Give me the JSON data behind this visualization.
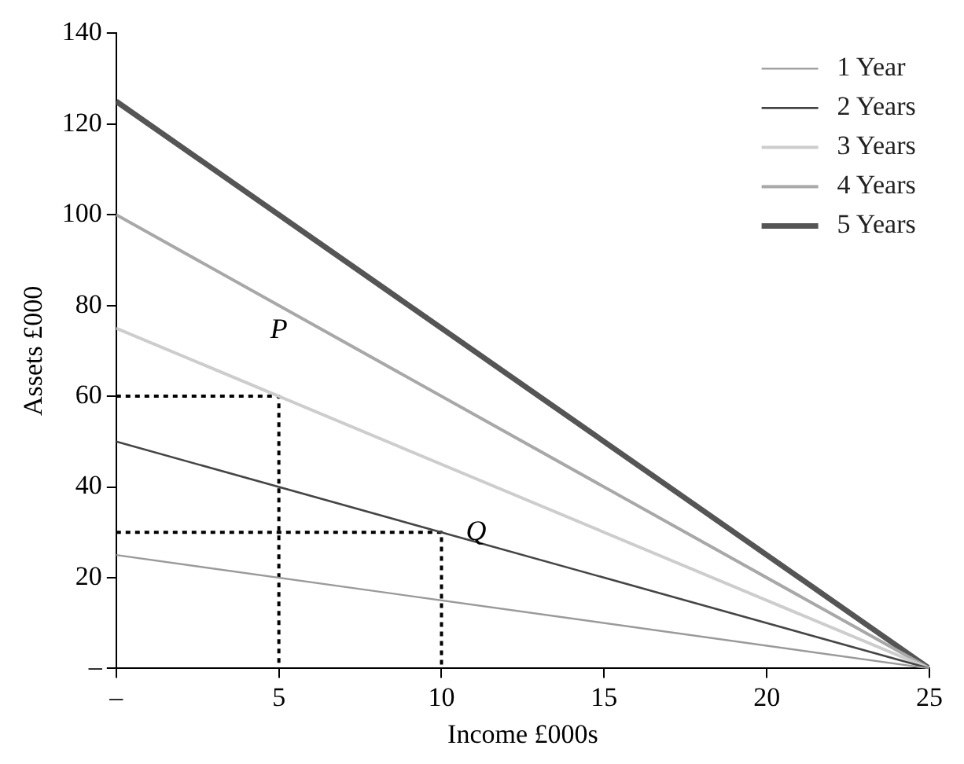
{
  "chart_data": {
    "type": "line",
    "xlabel": "Income £000s",
    "ylabel": "Assets £000",
    "x": [
      0,
      25
    ],
    "series": [
      {
        "name": "1 Year",
        "color": "#9a9a9a",
        "values": [
          25,
          0
        ]
      },
      {
        "name": "2 Years",
        "color": "#454545",
        "values": [
          50,
          0
        ]
      },
      {
        "name": "3 Years",
        "color": "#cdcdcd",
        "values": [
          75,
          0
        ]
      },
      {
        "name": "4 Years",
        "color": "#a8a8a8",
        "values": [
          100,
          0
        ]
      },
      {
        "name": "5 Years",
        "color": "#555555",
        "values": [
          125,
          0
        ]
      },
      {
        "type": "line",
        "line_style": "dotted",
        "color": "#000000",
        "x": [
          0,
          5,
          5
        ],
        "values": [
          60,
          60,
          0
        ]
      },
      {
        "type": "line",
        "line_style": "dotted",
        "color": "#000000",
        "x": [
          0,
          10,
          10
        ],
        "values": [
          30,
          30,
          0
        ]
      }
    ],
    "xlim": [
      0,
      25
    ],
    "xticks": [
      {
        "value": 0,
        "label": "–"
      },
      5,
      10,
      15,
      20,
      25
    ],
    "ylim": [
      0,
      140
    ],
    "yticks": [
      {
        "value": 0,
        "label": "–"
      },
      20,
      40,
      60,
      80,
      100,
      120,
      140
    ],
    "annotations": [
      {
        "text": "P",
        "x": 5,
        "y": 80
      },
      {
        "text": "Q",
        "x": 10,
        "y": 30
      }
    ],
    "grid": false,
    "legend": "top right",
    "marker": "none",
    "line_style": "solid"
  }
}
